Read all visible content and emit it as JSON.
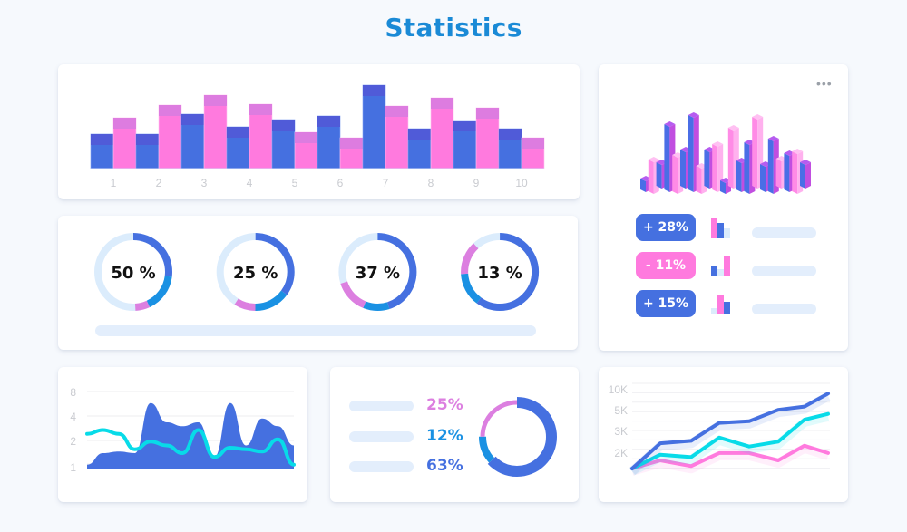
{
  "page": {
    "title": "Statistics"
  },
  "colors": {
    "blue": "#4570e0",
    "blue_cap": "#505bd8",
    "pink": "#ff7ade",
    "pink_cap": "#dd7ce0",
    "cyan": "#08dbe8",
    "sky": "#1a91e3",
    "orchid": "#dc7fe0",
    "light": "#dbecfc",
    "title": "#1a8ad6"
  },
  "bar_chart": {
    "categories": [
      "1",
      "2",
      "3",
      "4",
      "5",
      "6",
      "7",
      "8",
      "9",
      "10"
    ],
    "series": [
      {
        "name": "Blue",
        "values": [
          38,
          38,
          60,
          46,
          54,
          58,
          92,
          44,
          53,
          44
        ]
      },
      {
        "name": "Pink",
        "values": [
          56,
          70,
          81,
          71,
          40,
          34,
          69,
          78,
          67,
          34
        ]
      }
    ],
    "ymax": 100
  },
  "progress_rings": [
    {
      "label": "50 %",
      "segments": [
        0.27,
        0.16,
        0.06
      ]
    },
    {
      "label": "25 %",
      "segments": [
        0.35,
        0.15,
        0.09
      ]
    },
    {
      "label": "37 %",
      "segments": [
        0.45,
        0.11,
        0.14
      ]
    },
    {
      "label": "13 %",
      "segments": [
        0.6,
        0.14,
        0.14
      ]
    }
  ],
  "iso_chart": {
    "menu_icon": "more-horizontal-icon",
    "bars": [
      {
        "h": 12,
        "c": "blue"
      },
      {
        "h": 35,
        "c": "pink"
      },
      {
        "h": 26,
        "c": "blue"
      },
      {
        "h": 72,
        "c": "blue"
      },
      {
        "h": 40,
        "c": "pink"
      },
      {
        "h": 40,
        "c": "blue"
      },
      {
        "h": 82,
        "c": "blue"
      },
      {
        "h": 28,
        "c": "pink"
      },
      {
        "h": 40,
        "c": "blue"
      },
      {
        "h": 50,
        "c": "pink"
      },
      {
        "h": 12,
        "c": "blue"
      },
      {
        "h": 64,
        "c": "pink"
      },
      {
        "h": 32,
        "c": "blue"
      },
      {
        "h": 54,
        "c": "blue"
      },
      {
        "h": 76,
        "c": "pink"
      },
      {
        "h": 28,
        "c": "blue"
      },
      {
        "h": 58,
        "c": "blue"
      },
      {
        "h": 30,
        "c": "pink"
      },
      {
        "h": 40,
        "c": "blue"
      },
      {
        "h": 44,
        "c": "pink"
      },
      {
        "h": 26,
        "c": "blue"
      }
    ]
  },
  "trend_badges": [
    {
      "label": "+ 28%",
      "color": "blue",
      "mini": [
        0.9,
        0.7,
        0.45
      ],
      "mini_colors": [
        "pink",
        "blue",
        "light"
      ]
    },
    {
      "label": "- 11%",
      "color": "pink",
      "mini": [
        0.5,
        0.35,
        0.9
      ],
      "mini_colors": [
        "blue",
        "light",
        "pink"
      ]
    },
    {
      "label": "+ 15%",
      "color": "blue",
      "mini": [
        0.3,
        0.9,
        0.6
      ],
      "mini_colors": [
        "light",
        "pink",
        "blue"
      ]
    }
  ],
  "area_chart": {
    "y_ticks": [
      "8",
      "4",
      "2",
      "1"
    ],
    "area": [
      0.05,
      0.2,
      0.22,
      0.2,
      0.85,
      0.6,
      0.55,
      0.6,
      0.15,
      0.85,
      0.3,
      0.65,
      0.55,
      0.3
    ],
    "line": [
      0.45,
      0.5,
      0.45,
      0.25,
      0.35,
      0.3,
      0.2,
      0.5,
      0.15,
      0.27,
      0.25,
      0.22,
      0.38,
      0.05
    ]
  },
  "donut_panel": {
    "items": [
      {
        "label": "25%",
        "color": "orchid",
        "value": 25
      },
      {
        "label": "12%",
        "color": "sky",
        "value": 12
      },
      {
        "label": "63%",
        "color": "blue",
        "value": 63
      }
    ]
  },
  "line_chart": {
    "y_ticks": [
      "10K",
      "5K",
      "3K",
      "2K"
    ],
    "series": [
      {
        "name": "Blue",
        "color": "blue",
        "values": [
          0,
          3.1,
          3.4,
          5.6,
          5.8,
          7.2,
          7.6,
          9.2
        ]
      },
      {
        "name": "Cyan",
        "color": "cyan",
        "values": [
          0,
          1.7,
          1.4,
          3.8,
          2.7,
          3.3,
          6.0,
          6.7
        ]
      },
      {
        "name": "Pink",
        "color": "pink",
        "values": [
          0,
          1.0,
          0.3,
          1.9,
          1.9,
          1.0,
          2.8,
          1.9
        ]
      }
    ],
    "ymax": 10
  }
}
